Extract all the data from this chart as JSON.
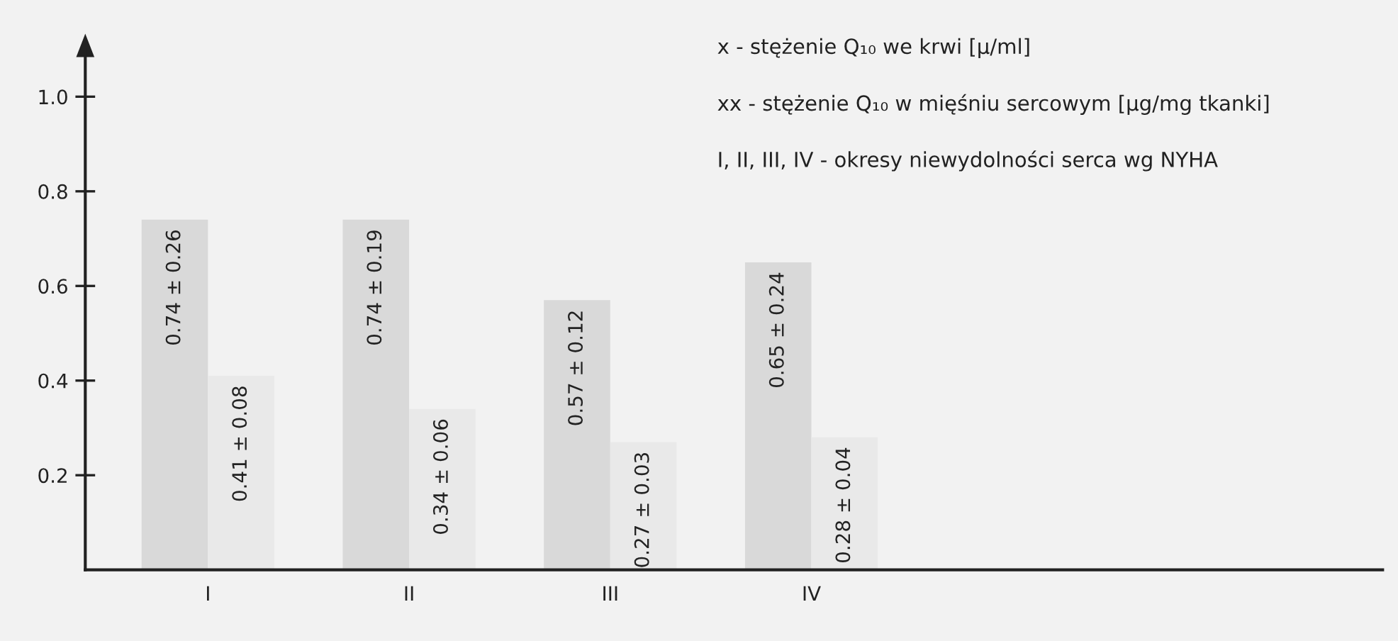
{
  "chart_data": {
    "type": "bar",
    "categories": [
      "I",
      "II",
      "III",
      "IV"
    ],
    "series": [
      {
        "color": "#d9d9d9",
        "values": [
          0.74,
          0.74,
          0.57,
          0.65
        ],
        "value_labels": [
          "0.74 ± 0.26",
          "0.74 ± 0.19",
          "0.57 ± 0.12",
          "0.65 ± 0.24"
        ]
      },
      {
        "color": "#e9e9e9",
        "values": [
          0.41,
          0.34,
          0.27,
          0.28
        ],
        "value_labels": [
          "0.41 ± 0.08",
          "0.34 ± 0.06",
          "0.27 ± 0.03",
          "0.28 ± 0.04"
        ]
      }
    ],
    "ylim": [
      0,
      1.1
    ],
    "yticks": [
      {
        "value": 0.2,
        "label": "0.2"
      },
      {
        "value": 0.4,
        "label": "0.4"
      },
      {
        "value": 0.6,
        "label": "0.6"
      },
      {
        "value": 0.8,
        "label": "0.8"
      },
      {
        "value": 1.0,
        "label": "1.0"
      }
    ],
    "grid": false,
    "legend": false,
    "annotations": [
      "x - stężenie Q₁₀ we krwi [μ/ml]",
      "xx - stężenie Q₁₀ w mięśniu sercowym [μg/mg tkanki]",
      "I, II, III, IV - okresy niewydolności serca wg NYHA"
    ]
  }
}
